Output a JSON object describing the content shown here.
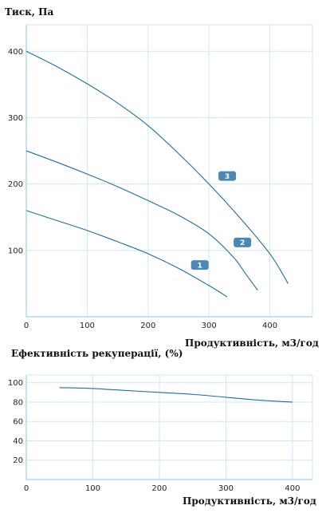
{
  "chart_data": [
    {
      "type": "line",
      "title": "",
      "ylabel": "Тиск, Па",
      "xlabel": "Продуктивність, м3/год",
      "xlim": [
        0,
        470
      ],
      "ylim": [
        0,
        440
      ],
      "x_ticks": [
        0,
        100,
        200,
        300,
        400
      ],
      "y_ticks": [
        100,
        200,
        300,
        400
      ],
      "grid": true,
      "series": [
        {
          "name": "1",
          "color": "#1f6f9c",
          "x": [
            0,
            50,
            100,
            150,
            200,
            250,
            300,
            330
          ],
          "y": [
            160,
            145,
            130,
            113,
            95,
            73,
            47,
            30
          ]
        },
        {
          "name": "2",
          "color": "#1f6f9c",
          "x": [
            0,
            50,
            100,
            150,
            200,
            250,
            300,
            340,
            360,
            380
          ],
          "y": [
            250,
            233,
            215,
            196,
            175,
            153,
            125,
            90,
            65,
            40
          ]
        },
        {
          "name": "3",
          "color": "#1f6f9c",
          "x": [
            0,
            50,
            100,
            150,
            200,
            250,
            300,
            350,
            400,
            430
          ],
          "y": [
            400,
            377,
            351,
            322,
            288,
            246,
            200,
            150,
            95,
            50
          ]
        }
      ],
      "labels": [
        {
          "text": "1",
          "x": 285,
          "y": 78
        },
        {
          "text": "2",
          "x": 355,
          "y": 112
        },
        {
          "text": "3",
          "x": 330,
          "y": 212
        }
      ]
    },
    {
      "type": "line",
      "title": "Ефективність рекуперації, (%)",
      "ylabel": "",
      "xlabel": "Продуктивність, м3/год",
      "xlim": [
        0,
        430
      ],
      "ylim": [
        0,
        108
      ],
      "x_ticks": [
        0,
        100,
        200,
        300,
        400
      ],
      "y_ticks": [
        20,
        40,
        60,
        80,
        100
      ],
      "grid": true,
      "series": [
        {
          "color": "#1f6f9c",
          "x": [
            50,
            100,
            150,
            200,
            250,
            300,
            350,
            400
          ],
          "y": [
            95,
            94,
            92,
            90,
            88,
            85,
            82,
            80
          ]
        }
      ]
    }
  ]
}
